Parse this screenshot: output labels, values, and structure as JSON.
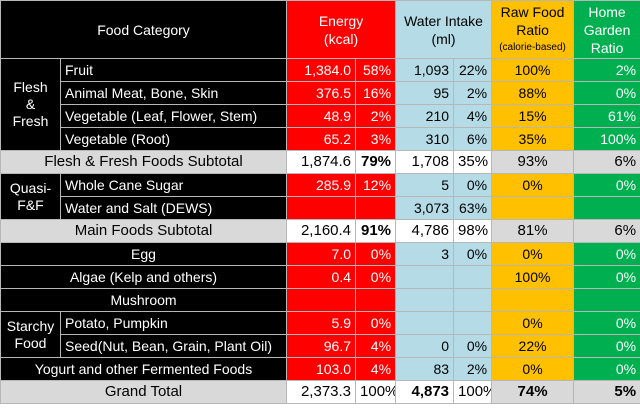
{
  "header": {
    "food_category": "Food Category",
    "energy_line1": "Energy",
    "energy_line2": "(kcal)",
    "water_line1": "Water Intake",
    "water_line2": "(ml)",
    "raw_line1": "Raw Food",
    "raw_line2": "Ratio",
    "raw_note": "(calorie-based)",
    "garden_line1": "Home",
    "garden_line2": "Garden",
    "garden_line3": "Ratio"
  },
  "groups": {
    "flesh_l1": "Flesh",
    "flesh_l2": "&",
    "flesh_l3": "Fresh",
    "quasi_l1": "Quasi-",
    "quasi_l2": "F&F",
    "starchy_l1": "Starchy",
    "starchy_l2": "Food"
  },
  "rows": {
    "fruit": {
      "label": "Fruit",
      "energy": "1,384.0",
      "energy_pct": "58%",
      "water": "1,093",
      "water_pct": "22%",
      "raw": "100%",
      "garden": "2%"
    },
    "meat": {
      "label": "Animal Meat, Bone, Skin",
      "energy": "376.5",
      "energy_pct": "16%",
      "water": "95",
      "water_pct": "2%",
      "raw": "88%",
      "garden": "0%"
    },
    "veg_leaf": {
      "label": "Vegetable (Leaf, Flower, Stem)",
      "energy": "48.9",
      "energy_pct": "2%",
      "water": "210",
      "water_pct": "4%",
      "raw": "15%",
      "garden": "61%"
    },
    "veg_root": {
      "label": "Vegetable (Root)",
      "energy": "65.2",
      "energy_pct": "3%",
      "water": "310",
      "water_pct": "6%",
      "raw": "35%",
      "garden": "100%"
    },
    "ff_subtotal": {
      "label": "Flesh & Fresh Foods Subtotal",
      "energy": "1,874.6",
      "energy_pct": "79%",
      "water": "1,708",
      "water_pct": "35%",
      "raw": "93%",
      "garden": "6%"
    },
    "cane_sugar": {
      "label": "Whole Cane Sugar",
      "energy": "285.9",
      "energy_pct": "12%",
      "water": "5",
      "water_pct": "0%",
      "raw": "0%",
      "garden": "0%"
    },
    "water_salt": {
      "label": "Water and Salt (DEWS)",
      "water": "3,073",
      "water_pct": "63%"
    },
    "main_subtotal": {
      "label": "Main Foods Subtotal",
      "energy": "2,160.4",
      "energy_pct": "91%",
      "water": "4,786",
      "water_pct": "98%",
      "raw": "81%",
      "garden": "6%"
    },
    "egg": {
      "label": "Egg",
      "energy": "7.0",
      "energy_pct": "0%",
      "water": "3",
      "water_pct": "0%",
      "raw": "0%",
      "garden": "0%"
    },
    "algae": {
      "label": "Algae (Kelp and others)",
      "energy": "0.4",
      "energy_pct": "0%",
      "raw": "100%",
      "garden": "0%"
    },
    "mushroom": {
      "label": "Mushroom"
    },
    "potato": {
      "label": "Potato, Pumpkin",
      "energy": "5.9",
      "energy_pct": "0%",
      "raw": "0%",
      "garden": "0%"
    },
    "seed": {
      "label": "Seed(Nut, Bean, Grain, Plant Oil)",
      "energy": "96.7",
      "energy_pct": "4%",
      "water": "0",
      "water_pct": "0%",
      "raw": "22%",
      "garden": "0%"
    },
    "yogurt": {
      "label": "Yogurt and other Fermented Foods",
      "energy": "103.0",
      "energy_pct": "4%",
      "water": "83",
      "water_pct": "2%",
      "raw": "0%",
      "garden": "0%"
    },
    "grand_total": {
      "label": "Grand Total",
      "energy": "2,373.3",
      "energy_pct": "100%",
      "water": "4,873",
      "water_pct": "100%",
      "raw": "74%",
      "garden": "5%"
    }
  },
  "colors": {
    "energy": "#ff0000",
    "water": "#b4dbe6",
    "raw": "#ffc000",
    "garden": "#00b050",
    "category": "#000000",
    "subtotal": "#d9d9d9"
  }
}
